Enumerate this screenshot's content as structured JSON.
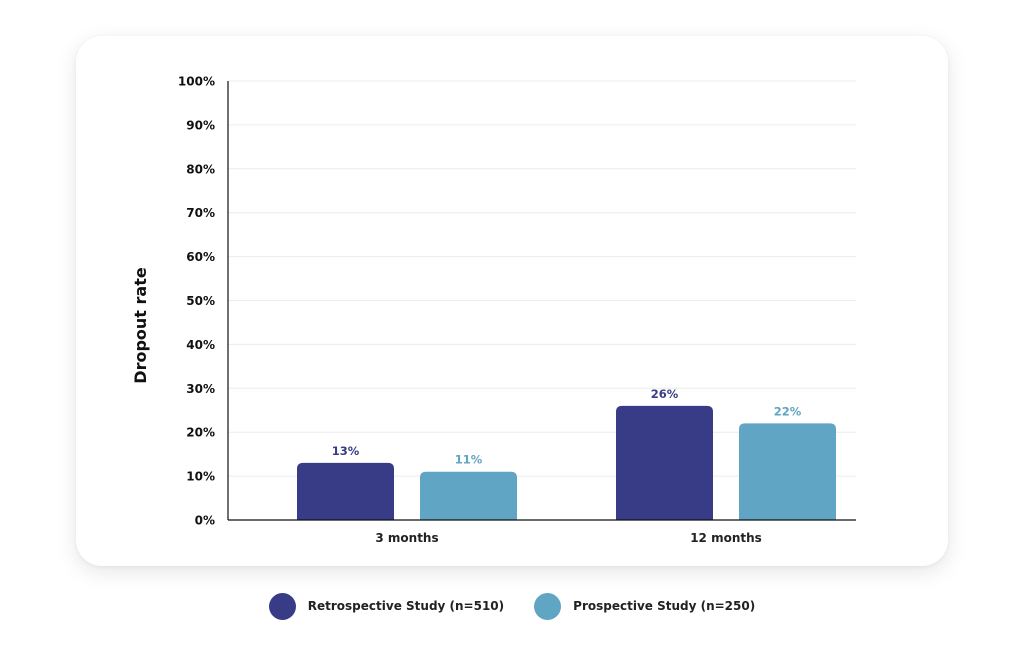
{
  "chart_data": {
    "type": "bar",
    "categories": [
      "3 months",
      "12 months"
    ],
    "series": [
      {
        "name": "Retrospective Study (n=510)",
        "values": [
          13,
          26
        ],
        "value_labels": [
          "13%",
          "26%"
        ],
        "color": "#383c86"
      },
      {
        "name": "Prospective Study (n=250)",
        "values": [
          11,
          22
        ],
        "value_labels": [
          "11%",
          "22%"
        ],
        "color": "#60a5c3"
      }
    ],
    "title": "",
    "xlabel": "",
    "ylabel": "Dropout rate",
    "ylim": [
      0,
      100
    ],
    "yticks": [
      0,
      10,
      20,
      30,
      40,
      50,
      60,
      70,
      80,
      90,
      100
    ],
    "ytick_labels": [
      "0%",
      "10%",
      "20%",
      "30%",
      "40%",
      "50%",
      "60%",
      "70%",
      "80%",
      "90%",
      "100%"
    ],
    "grid": true,
    "legend_position": "bottom"
  }
}
